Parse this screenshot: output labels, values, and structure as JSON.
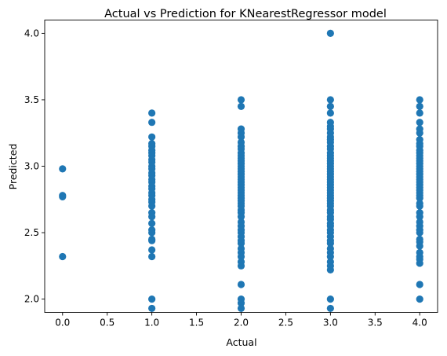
{
  "chart_data": {
    "type": "scatter",
    "title": "Actual vs Prediction for KNearestRegressor model",
    "xlabel": "Actual",
    "ylabel": "Predicted",
    "xlim": [
      -0.2,
      4.2
    ],
    "ylim": [
      1.9,
      4.1
    ],
    "x_ticks": [
      "0.0",
      "0.5",
      "1.0",
      "1.5",
      "2.0",
      "2.5",
      "3.0",
      "3.5",
      "4.0"
    ],
    "y_ticks": [
      "2.0",
      "2.5",
      "3.0",
      "3.5",
      "4.0"
    ],
    "grid": false,
    "marker_color": "#1f77b4",
    "series": [
      {
        "x": 0,
        "y": [
          2.98,
          2.78,
          2.77,
          2.32
        ]
      },
      {
        "x": 1,
        "y": [
          3.4,
          3.33,
          3.22,
          3.17,
          3.15,
          3.12,
          3.1,
          3.08,
          3.05,
          3.03,
          3.0,
          2.98,
          2.95,
          2.93,
          2.9,
          2.88,
          2.85,
          2.83,
          2.8,
          2.78,
          2.75,
          2.73,
          2.7,
          2.65,
          2.62,
          2.57,
          2.52,
          2.5,
          2.45,
          2.44,
          2.37,
          2.32,
          2.0,
          1.93
        ]
      },
      {
        "x": 2,
        "y": [
          3.5,
          3.45,
          3.28,
          3.25,
          3.22,
          3.18,
          3.15,
          3.13,
          3.1,
          3.08,
          3.06,
          3.04,
          3.02,
          3.0,
          2.98,
          2.96,
          2.94,
          2.92,
          2.9,
          2.88,
          2.86,
          2.84,
          2.82,
          2.8,
          2.78,
          2.76,
          2.74,
          2.72,
          2.7,
          2.67,
          2.65,
          2.62,
          2.58,
          2.55,
          2.52,
          2.5,
          2.47,
          2.44,
          2.42,
          2.38,
          2.35,
          2.32,
          2.28,
          2.25,
          2.11,
          2.0,
          1.97,
          1.93
        ]
      },
      {
        "x": 3,
        "y": [
          4.0,
          3.5,
          3.45,
          3.4,
          3.33,
          3.3,
          3.28,
          3.25,
          3.22,
          3.2,
          3.18,
          3.15,
          3.13,
          3.1,
          3.08,
          3.06,
          3.04,
          3.02,
          3.0,
          2.98,
          2.96,
          2.94,
          2.92,
          2.9,
          2.88,
          2.86,
          2.84,
          2.82,
          2.8,
          2.78,
          2.76,
          2.74,
          2.72,
          2.7,
          2.67,
          2.65,
          2.62,
          2.6,
          2.57,
          2.55,
          2.52,
          2.5,
          2.47,
          2.44,
          2.42,
          2.38,
          2.35,
          2.32,
          2.28,
          2.25,
          2.22,
          2.0,
          1.93
        ]
      },
      {
        "x": 4,
        "y": [
          3.5,
          3.45,
          3.4,
          3.33,
          3.28,
          3.25,
          3.2,
          3.17,
          3.15,
          3.12,
          3.1,
          3.08,
          3.06,
          3.04,
          3.02,
          3.0,
          2.98,
          2.96,
          2.94,
          2.92,
          2.9,
          2.88,
          2.86,
          2.84,
          2.82,
          2.8,
          2.78,
          2.76,
          2.72,
          2.7,
          2.65,
          2.62,
          2.58,
          2.55,
          2.52,
          2.5,
          2.45,
          2.43,
          2.4,
          2.35,
          2.32,
          2.3,
          2.27,
          2.11,
          2.0
        ]
      }
    ]
  }
}
